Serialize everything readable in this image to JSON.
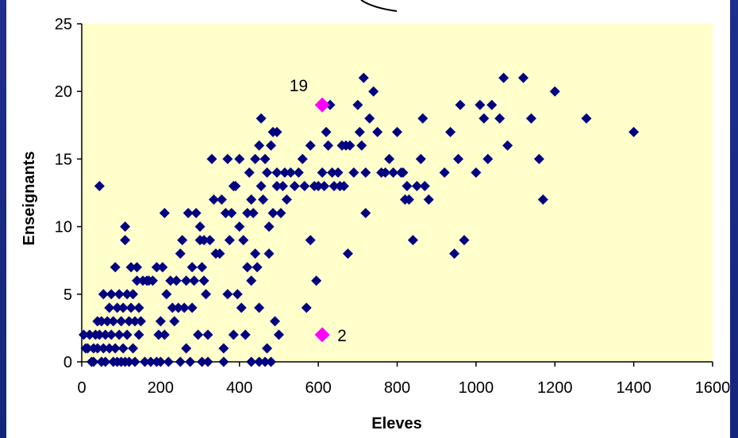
{
  "chart_data": {
    "type": "scatter",
    "title": "",
    "xlabel": "Eleves",
    "ylabel": "Enseignants",
    "xlim": [
      0,
      1600
    ],
    "ylim": [
      0,
      25
    ],
    "x_ticks": [
      "0",
      "200",
      "400",
      "600",
      "800",
      "1000",
      "1200",
      "1400",
      "1600"
    ],
    "y_ticks": [
      "0",
      "5",
      "10",
      "15",
      "20",
      "25"
    ],
    "grid": false,
    "legend": "none",
    "plot_background": "#ffffcc",
    "point_color": "#000080",
    "highlight_color": "#ff00ff",
    "series": [
      {
        "values": [
          [
            5,
            2
          ],
          [
            10,
            1
          ],
          [
            15,
            1
          ],
          [
            20,
            2
          ],
          [
            25,
            0
          ],
          [
            30,
            1
          ],
          [
            30,
            0
          ],
          [
            35,
            2
          ],
          [
            40,
            1
          ],
          [
            40,
            3
          ],
          [
            45,
            13
          ],
          [
            45,
            2
          ],
          [
            50,
            0
          ],
          [
            50,
            3
          ],
          [
            55,
            1
          ],
          [
            55,
            5
          ],
          [
            60,
            2
          ],
          [
            60,
            0
          ],
          [
            65,
            3
          ],
          [
            70,
            1
          ],
          [
            70,
            4
          ],
          [
            75,
            2
          ],
          [
            75,
            5
          ],
          [
            80,
            0
          ],
          [
            80,
            3
          ],
          [
            85,
            7
          ],
          [
            85,
            1
          ],
          [
            90,
            0
          ],
          [
            90,
            4
          ],
          [
            95,
            2
          ],
          [
            95,
            5
          ],
          [
            100,
            0
          ],
          [
            100,
            3
          ],
          [
            105,
            1
          ],
          [
            105,
            4
          ],
          [
            110,
            0
          ],
          [
            110,
            10
          ],
          [
            110,
            9
          ],
          [
            115,
            2
          ],
          [
            115,
            5
          ],
          [
            120,
            0
          ],
          [
            120,
            3
          ],
          [
            125,
            4
          ],
          [
            125,
            7
          ],
          [
            130,
            1
          ],
          [
            130,
            5
          ],
          [
            135,
            0
          ],
          [
            135,
            3
          ],
          [
            140,
            7
          ],
          [
            140,
            6
          ],
          [
            145,
            2
          ],
          [
            145,
            4
          ],
          [
            150,
            3
          ],
          [
            155,
            6
          ],
          [
            160,
            0
          ],
          [
            165,
            6
          ],
          [
            170,
            6
          ],
          [
            175,
            0
          ],
          [
            180,
            6
          ],
          [
            190,
            0
          ],
          [
            190,
            7
          ],
          [
            195,
            2
          ],
          [
            200,
            3
          ],
          [
            200,
            0
          ],
          [
            205,
            7
          ],
          [
            210,
            11
          ],
          [
            210,
            2
          ],
          [
            215,
            5
          ],
          [
            220,
            0
          ],
          [
            225,
            6
          ],
          [
            230,
            4
          ],
          [
            235,
            3
          ],
          [
            240,
            6
          ],
          [
            245,
            4
          ],
          [
            250,
            8
          ],
          [
            250,
            0
          ],
          [
            255,
            9
          ],
          [
            260,
            4
          ],
          [
            265,
            1
          ],
          [
            265,
            6
          ],
          [
            270,
            11
          ],
          [
            275,
            0
          ],
          [
            280,
            4
          ],
          [
            280,
            7
          ],
          [
            285,
            6
          ],
          [
            290,
            11
          ],
          [
            295,
            2
          ],
          [
            300,
            10
          ],
          [
            300,
            9
          ],
          [
            305,
            0
          ],
          [
            305,
            7
          ],
          [
            310,
            6
          ],
          [
            310,
            9
          ],
          [
            315,
            5
          ],
          [
            320,
            2
          ],
          [
            320,
            0
          ],
          [
            325,
            9
          ],
          [
            330,
            15
          ],
          [
            335,
            12
          ],
          [
            340,
            8
          ],
          [
            350,
            8
          ],
          [
            355,
            12
          ],
          [
            360,
            1
          ],
          [
            360,
            0
          ],
          [
            365,
            11
          ],
          [
            370,
            15
          ],
          [
            370,
            5
          ],
          [
            375,
            9
          ],
          [
            380,
            11
          ],
          [
            385,
            13
          ],
          [
            385,
            2
          ],
          [
            390,
            13
          ],
          [
            395,
            5
          ],
          [
            400,
            15
          ],
          [
            400,
            10
          ],
          [
            405,
            4
          ],
          [
            410,
            9
          ],
          [
            415,
            2
          ],
          [
            420,
            11
          ],
          [
            420,
            7
          ],
          [
            425,
            14
          ],
          [
            430,
            0
          ],
          [
            430,
            12
          ],
          [
            430,
            6
          ],
          [
            435,
            11
          ],
          [
            440,
            8
          ],
          [
            440,
            15
          ],
          [
            445,
            7
          ],
          [
            450,
            16
          ],
          [
            450,
            4
          ],
          [
            450,
            0
          ],
          [
            455,
            18
          ],
          [
            455,
            13
          ],
          [
            460,
            12
          ],
          [
            465,
            0
          ],
          [
            465,
            15
          ],
          [
            470,
            1
          ],
          [
            470,
            14
          ],
          [
            475,
            10
          ],
          [
            475,
            8
          ],
          [
            480,
            16
          ],
          [
            480,
            0
          ],
          [
            485,
            17
          ],
          [
            485,
            11
          ],
          [
            490,
            3
          ],
          [
            495,
            17
          ],
          [
            495,
            14
          ],
          [
            495,
            13
          ],
          [
            500,
            2
          ],
          [
            505,
            11
          ],
          [
            510,
            13
          ],
          [
            515,
            14
          ],
          [
            520,
            12
          ],
          [
            530,
            14
          ],
          [
            540,
            13
          ],
          [
            550,
            14
          ],
          [
            560,
            15
          ],
          [
            565,
            13
          ],
          [
            570,
            4
          ],
          [
            580,
            16
          ],
          [
            580,
            9
          ],
          [
            590,
            13
          ],
          [
            595,
            6
          ],
          [
            600,
            13
          ],
          [
            610,
            14
          ],
          [
            615,
            13
          ],
          [
            620,
            17
          ],
          [
            625,
            16
          ],
          [
            630,
            19
          ],
          [
            635,
            14
          ],
          [
            640,
            13
          ],
          [
            650,
            14
          ],
          [
            655,
            13
          ],
          [
            660,
            16
          ],
          [
            665,
            13
          ],
          [
            670,
            16
          ],
          [
            675,
            8
          ],
          [
            680,
            16
          ],
          [
            690,
            14
          ],
          [
            700,
            19
          ],
          [
            705,
            17
          ],
          [
            710,
            16
          ],
          [
            715,
            21
          ],
          [
            720,
            14
          ],
          [
            720,
            11
          ],
          [
            730,
            18
          ],
          [
            740,
            20
          ],
          [
            750,
            17
          ],
          [
            760,
            14
          ],
          [
            770,
            14
          ],
          [
            780,
            15
          ],
          [
            790,
            14
          ],
          [
            800,
            17
          ],
          [
            810,
            14
          ],
          [
            815,
            14
          ],
          [
            820,
            12
          ],
          [
            825,
            13
          ],
          [
            830,
            12
          ],
          [
            840,
            9
          ],
          [
            850,
            13
          ],
          [
            860,
            15
          ],
          [
            865,
            18
          ],
          [
            870,
            13
          ],
          [
            880,
            12
          ],
          [
            920,
            14
          ],
          [
            935,
            17
          ],
          [
            945,
            8
          ],
          [
            955,
            15
          ],
          [
            960,
            19
          ],
          [
            970,
            9
          ],
          [
            1000,
            14
          ],
          [
            1010,
            19
          ],
          [
            1020,
            18
          ],
          [
            1030,
            15
          ],
          [
            1040,
            19
          ],
          [
            1060,
            18
          ],
          [
            1070,
            21
          ],
          [
            1080,
            16
          ],
          [
            1120,
            21
          ],
          [
            1140,
            18
          ],
          [
            1160,
            15
          ],
          [
            1170,
            12
          ],
          [
            1200,
            20
          ],
          [
            1280,
            18
          ],
          [
            1400,
            17
          ]
        ]
      },
      {
        "values": [
          [
            610,
            19
          ],
          [
            610,
            2
          ]
        ]
      }
    ],
    "annotations": [
      {
        "text": "19",
        "x": 610,
        "y": 19
      },
      {
        "text": "2",
        "x": 610,
        "y": 2
      }
    ]
  }
}
